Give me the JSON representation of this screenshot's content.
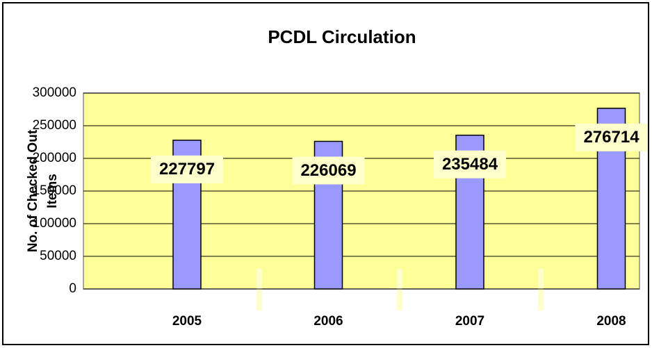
{
  "chart_data": {
    "type": "bar",
    "title": "PCDL Circulation",
    "ylabel": "No. of Checked Out Items",
    "categories": [
      "2005",
      "2006",
      "2007",
      "2008"
    ],
    "values": [
      227797,
      226069,
      235484,
      276714
    ],
    "color": "#9999ff",
    "ylim": [
      0,
      300000
    ],
    "yticks": [
      0,
      50000,
      100000,
      150000,
      200000,
      250000,
      300000
    ],
    "grid": true
  }
}
